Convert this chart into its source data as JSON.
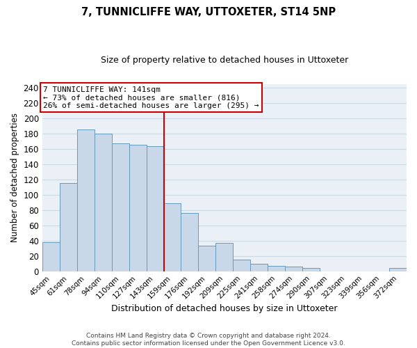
{
  "title": "7, TUNNICLIFFE WAY, UTTOXETER, ST14 5NP",
  "subtitle": "Size of property relative to detached houses in Uttoxeter",
  "xlabel": "Distribution of detached houses by size in Uttoxeter",
  "ylabel": "Number of detached properties",
  "bar_labels": [
    "45sqm",
    "61sqm",
    "78sqm",
    "94sqm",
    "110sqm",
    "127sqm",
    "143sqm",
    "159sqm",
    "176sqm",
    "192sqm",
    "209sqm",
    "225sqm",
    "241sqm",
    "258sqm",
    "274sqm",
    "290sqm",
    "307sqm",
    "323sqm",
    "339sqm",
    "356sqm",
    "372sqm"
  ],
  "bar_values": [
    38,
    115,
    185,
    180,
    167,
    165,
    164,
    89,
    76,
    33,
    37,
    15,
    10,
    7,
    6,
    4,
    0,
    0,
    0,
    0,
    4
  ],
  "bar_color": "#c8d8e8",
  "bar_edge_color": "#6699bb",
  "marker_index": 6,
  "marker_label": "7 TUNNICLIFFE WAY: 141sqm",
  "marker_line_color": "#cc0000",
  "annotation_line1": "7 TUNNICLIFFE WAY: 141sqm",
  "annotation_line2": "← 73% of detached houses are smaller (816)",
  "annotation_line3": "26% of semi-detached houses are larger (295) →",
  "annotation_box_edge_color": "#cc0000",
  "ylim": [
    0,
    245
  ],
  "yticks": [
    0,
    20,
    40,
    60,
    80,
    100,
    120,
    140,
    160,
    180,
    200,
    220,
    240
  ],
  "grid_color": "#ccd9e3",
  "footer_text": "Contains HM Land Registry data © Crown copyright and database right 2024.\nContains public sector information licensed under the Open Government Licence v3.0.",
  "bg_color": "#ffffff",
  "plot_bg_color": "#eaf0f6"
}
